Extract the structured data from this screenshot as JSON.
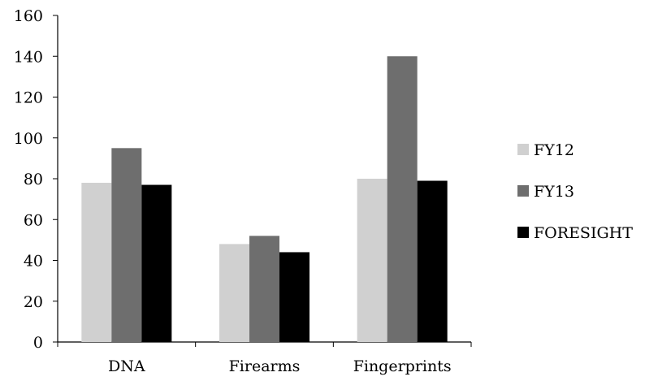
{
  "chart_data": {
    "type": "bar",
    "categories": [
      "DNA",
      "Firearms",
      "Fingerprints"
    ],
    "series": [
      {
        "name": "FY12",
        "values": [
          78,
          48,
          80
        ],
        "color": "#d0d0d0"
      },
      {
        "name": "FY13",
        "values": [
          95,
          52,
          140
        ],
        "color": "#6e6e6e"
      },
      {
        "name": "FORESIGHT",
        "values": [
          77,
          44,
          79
        ],
        "color": "#000000"
      }
    ],
    "title": "",
    "xlabel": "",
    "ylabel": "",
    "ylim": [
      0,
      160
    ],
    "yticks": [
      0,
      20,
      40,
      60,
      80,
      100,
      120,
      140,
      160
    ],
    "grid": false,
    "legend_position": "right"
  }
}
